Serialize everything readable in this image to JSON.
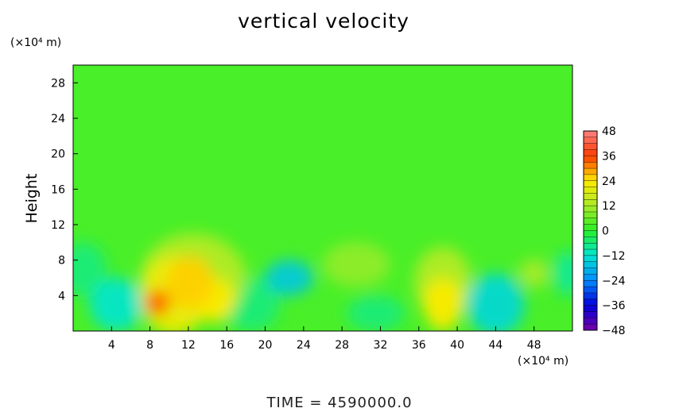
{
  "chart_data": {
    "type": "heatmap",
    "title": "vertical velocity",
    "ylabel": "Height",
    "xlabel": "",
    "x_unit": "(×10⁴ m)",
    "y_unit": "(×10⁴ m)",
    "footer": "TIME  =  4590000.0",
    "xlim": [
      0,
      52
    ],
    "ylim": [
      0,
      30
    ],
    "x_ticks": [
      4,
      8,
      12,
      16,
      20,
      24,
      28,
      32,
      36,
      40,
      44,
      48
    ],
    "y_ticks": [
      4,
      8,
      12,
      16,
      20,
      24,
      28
    ],
    "colorbar": {
      "min": -48,
      "max": 48,
      "ticks": [
        48,
        36,
        24,
        12,
        0,
        -12,
        -24,
        -36,
        -48
      ],
      "tick_labels": [
        "48",
        "36",
        "24",
        "12",
        "0",
        "−12",
        "−24",
        "−36",
        "−48"
      ]
    },
    "background_value": 3,
    "features": [
      {
        "x": 4.5,
        "y": 3.0,
        "value": -12,
        "rx": 2.8,
        "ry": 3.0
      },
      {
        "x": 8.8,
        "y": 3.2,
        "value": 34,
        "rx": 1.3,
        "ry": 1.4
      },
      {
        "x": 10.5,
        "y": 4.0,
        "value": 22,
        "rx": 3.5,
        "ry": 4.5
      },
      {
        "x": 12.2,
        "y": 5.5,
        "value": 26,
        "rx": 2.5,
        "ry": 3.0
      },
      {
        "x": 14.8,
        "y": 3.5,
        "value": 24,
        "rx": 2.0,
        "ry": 2.5
      },
      {
        "x": 12.5,
        "y": 6.0,
        "value": 14,
        "rx": 5.5,
        "ry": 5.0
      },
      {
        "x": 22.5,
        "y": 6.0,
        "value": -16,
        "rx": 2.5,
        "ry": 2.0
      },
      {
        "x": 18.5,
        "y": 3.0,
        "value": -6,
        "rx": 3.0,
        "ry": 3.0
      },
      {
        "x": 29.5,
        "y": 7.5,
        "value": 10,
        "rx": 3.5,
        "ry": 2.5
      },
      {
        "x": 31.5,
        "y": 2.0,
        "value": -6,
        "rx": 3.0,
        "ry": 2.0
      },
      {
        "x": 38.5,
        "y": 3.0,
        "value": 24,
        "rx": 2.0,
        "ry": 3.0
      },
      {
        "x": 38.5,
        "y": 5.5,
        "value": 14,
        "rx": 3.0,
        "ry": 4.0
      },
      {
        "x": 44.0,
        "y": 3.0,
        "value": -14,
        "rx": 3.0,
        "ry": 3.5
      },
      {
        "x": 48.0,
        "y": 6.5,
        "value": 12,
        "rx": 1.6,
        "ry": 1.6
      },
      {
        "x": 51.5,
        "y": 6.5,
        "value": -8,
        "rx": 1.5,
        "ry": 2.5
      },
      {
        "x": 1.0,
        "y": 7.0,
        "value": -6,
        "rx": 2.5,
        "ry": 3.0
      }
    ]
  }
}
